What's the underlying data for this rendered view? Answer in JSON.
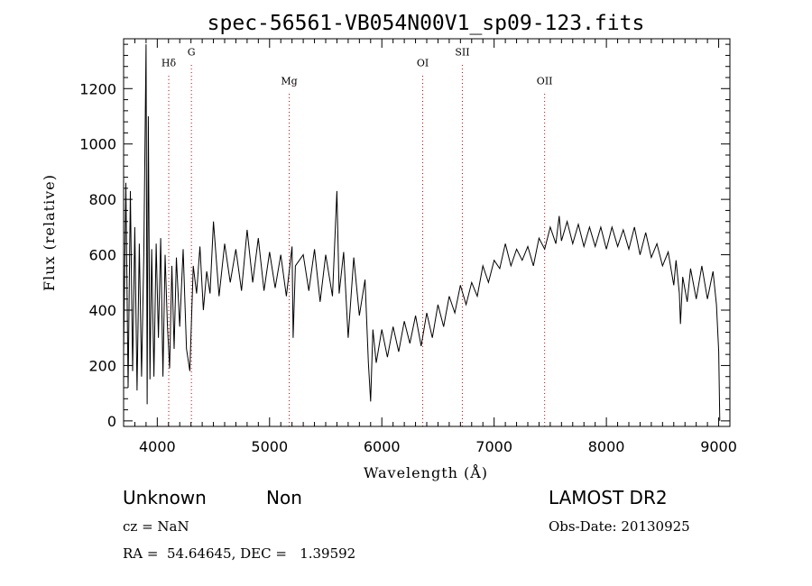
{
  "chart_data": {
    "type": "line",
    "title": "spec-56561-VB054N00V1_sp09-123.fits",
    "xlabel": "Wavelength (Å)",
    "ylabel": "Flux (relative)",
    "xlim": [
      3700,
      9100
    ],
    "ylim": [
      -20,
      1380
    ],
    "x_ticks": [
      4000,
      5000,
      6000,
      7000,
      8000,
      9000
    ],
    "y_ticks": [
      0,
      200,
      400,
      600,
      800,
      1000,
      1200
    ],
    "grid": false,
    "series": [
      {
        "points": [
          [
            3700,
            250
          ],
          [
            3720,
            860
          ],
          [
            3740,
            120
          ],
          [
            3760,
            830
          ],
          [
            3780,
            180
          ],
          [
            3800,
            700
          ],
          [
            3820,
            110
          ],
          [
            3840,
            640
          ],
          [
            3860,
            160
          ],
          [
            3880,
            600
          ],
          [
            3900,
            1360
          ],
          [
            3910,
            60
          ],
          [
            3920,
            1100
          ],
          [
            3935,
            150
          ],
          [
            3950,
            620
          ],
          [
            3970,
            160
          ],
          [
            3990,
            640
          ],
          [
            4010,
            300
          ],
          [
            4030,
            660
          ],
          [
            4050,
            160
          ],
          [
            4070,
            600
          ],
          [
            4090,
            350
          ],
          [
            4110,
            190
          ],
          [
            4130,
            560
          ],
          [
            4150,
            260
          ],
          [
            4170,
            590
          ],
          [
            4200,
            340
          ],
          [
            4230,
            620
          ],
          [
            4260,
            260
          ],
          [
            4290,
            180
          ],
          [
            4320,
            560
          ],
          [
            4350,
            460
          ],
          [
            4380,
            630
          ],
          [
            4410,
            400
          ],
          [
            4440,
            540
          ],
          [
            4470,
            460
          ],
          [
            4500,
            720
          ],
          [
            4550,
            450
          ],
          [
            4600,
            640
          ],
          [
            4650,
            500
          ],
          [
            4700,
            620
          ],
          [
            4750,
            470
          ],
          [
            4800,
            690
          ],
          [
            4850,
            500
          ],
          [
            4900,
            660
          ],
          [
            4950,
            470
          ],
          [
            5000,
            610
          ],
          [
            5050,
            480
          ],
          [
            5100,
            600
          ],
          [
            5150,
            450
          ],
          [
            5200,
            630
          ],
          [
            5210,
            300
          ],
          [
            5230,
            560
          ],
          [
            5300,
            600
          ],
          [
            5350,
            470
          ],
          [
            5400,
            620
          ],
          [
            5450,
            430
          ],
          [
            5500,
            600
          ],
          [
            5560,
            450
          ],
          [
            5600,
            830
          ],
          [
            5620,
            460
          ],
          [
            5660,
            610
          ],
          [
            5700,
            300
          ],
          [
            5750,
            590
          ],
          [
            5800,
            380
          ],
          [
            5850,
            510
          ],
          [
            5880,
            210
          ],
          [
            5900,
            70
          ],
          [
            5920,
            330
          ],
          [
            5950,
            210
          ],
          [
            6000,
            330
          ],
          [
            6050,
            230
          ],
          [
            6100,
            340
          ],
          [
            6150,
            250
          ],
          [
            6200,
            360
          ],
          [
            6250,
            280
          ],
          [
            6300,
            380
          ],
          [
            6350,
            270
          ],
          [
            6400,
            390
          ],
          [
            6450,
            300
          ],
          [
            6500,
            420
          ],
          [
            6550,
            340
          ],
          [
            6600,
            450
          ],
          [
            6650,
            390
          ],
          [
            6700,
            490
          ],
          [
            6750,
            420
          ],
          [
            6800,
            500
          ],
          [
            6850,
            450
          ],
          [
            6900,
            560
          ],
          [
            6950,
            500
          ],
          [
            7000,
            580
          ],
          [
            7050,
            550
          ],
          [
            7100,
            640
          ],
          [
            7150,
            560
          ],
          [
            7200,
            620
          ],
          [
            7250,
            580
          ],
          [
            7300,
            630
          ],
          [
            7350,
            560
          ],
          [
            7400,
            660
          ],
          [
            7450,
            620
          ],
          [
            7500,
            700
          ],
          [
            7550,
            640
          ],
          [
            7580,
            740
          ],
          [
            7600,
            650
          ],
          [
            7650,
            720
          ],
          [
            7700,
            640
          ],
          [
            7750,
            710
          ],
          [
            7800,
            630
          ],
          [
            7850,
            700
          ],
          [
            7900,
            630
          ],
          [
            7950,
            700
          ],
          [
            8000,
            620
          ],
          [
            8050,
            700
          ],
          [
            8100,
            630
          ],
          [
            8150,
            690
          ],
          [
            8200,
            620
          ],
          [
            8250,
            700
          ],
          [
            8300,
            600
          ],
          [
            8350,
            680
          ],
          [
            8400,
            590
          ],
          [
            8450,
            640
          ],
          [
            8500,
            560
          ],
          [
            8550,
            610
          ],
          [
            8600,
            490
          ],
          [
            8620,
            580
          ],
          [
            8650,
            460
          ],
          [
            8660,
            350
          ],
          [
            8680,
            520
          ],
          [
            8720,
            430
          ],
          [
            8750,
            550
          ],
          [
            8800,
            440
          ],
          [
            8850,
            560
          ],
          [
            8900,
            440
          ],
          [
            8950,
            540
          ],
          [
            8980,
            420
          ],
          [
            9000,
            250
          ],
          [
            9010,
            0
          ]
        ]
      }
    ],
    "spectral_lines": [
      {
        "name": "Hδ",
        "x": 4102,
        "label_y": 1280
      },
      {
        "name": "G",
        "x": 4304,
        "label_y": 1320
      },
      {
        "name": "Mg",
        "x": 5175,
        "label_y": 1215
      },
      {
        "name": "OI",
        "x": 6364,
        "label_y": 1280
      },
      {
        "name": "SII",
        "x": 6717,
        "label_y": 1320
      },
      {
        "name": "OII",
        "x": 7450,
        "label_y": 1215
      }
    ]
  },
  "footer": {
    "object_class": "Unknown",
    "subclass": "Non",
    "survey": "LAMOST DR2",
    "redshift": "cz = NaN",
    "obs_date": "Obs-Date: 20130925",
    "coords": "RA =  54.64645, DEC =   1.39592"
  },
  "colors": {
    "spectrum": "#000000",
    "line_marker": "#cc0000"
  }
}
